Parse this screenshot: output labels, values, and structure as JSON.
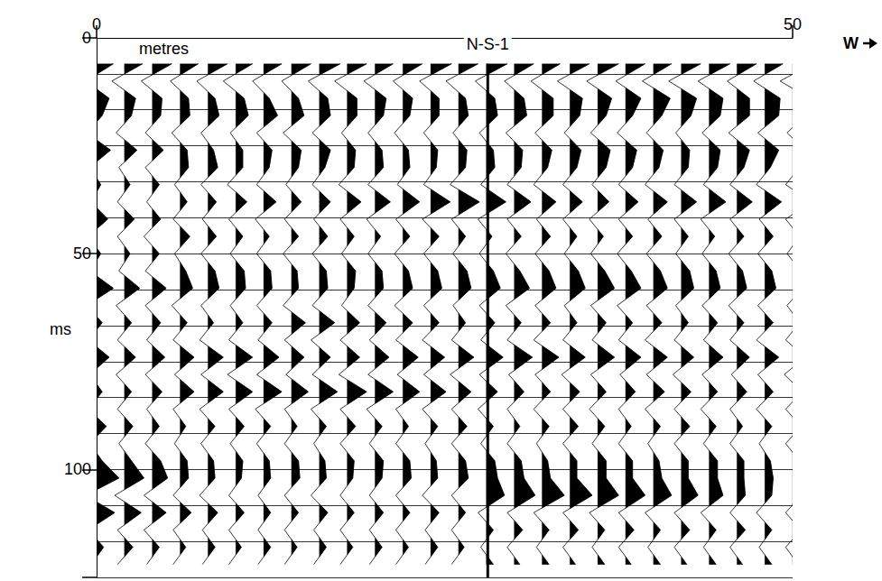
{
  "chart_data": {
    "type": "wiggle",
    "x_label": "metres",
    "y_label": "ms",
    "xlim": [
      0,
      50
    ],
    "xticks": [
      0,
      50
    ],
    "ylim": [
      0,
      125
    ],
    "yticks": [
      0,
      50,
      100
    ],
    "grid": true,
    "color": "#000000",
    "annotations": [
      {
        "text": "N-S-1",
        "x": 28.1
      },
      {
        "text": "W"
      }
    ],
    "traces": {
      "x": [
        0,
        2,
        4,
        6,
        8,
        10,
        12,
        14,
        16,
        18,
        20,
        22,
        24,
        26,
        28,
        30,
        32,
        34,
        36,
        38,
        40,
        42,
        44,
        46,
        48,
        50
      ],
      "t": [
        6,
        10,
        14,
        18,
        22,
        26,
        30,
        34,
        38,
        42,
        46,
        50,
        54,
        58,
        62,
        66,
        70,
        74,
        78,
        82,
        86,
        90,
        94,
        98,
        102,
        106,
        110,
        114,
        118,
        122
      ],
      "amplitudes": [
        [
          1.2,
          -0.8,
          0.9,
          0.4,
          -0.7,
          1.0,
          -0.5,
          0.3,
          -0.4,
          0.8,
          -0.6,
          0.3,
          -0.5,
          1.2,
          -0.7,
          0.4,
          -0.6,
          0.9,
          -0.5,
          0.4,
          -0.6,
          0.7,
          -0.5,
          0.4,
          1.6,
          -0.8,
          1.3,
          -0.6,
          0.5,
          -0.4
        ],
        [
          1.3,
          -0.9,
          0.8,
          0.5,
          -0.6,
          0.9,
          -0.4,
          0.4,
          -0.5,
          0.7,
          -0.5,
          0.4,
          -0.4,
          1.1,
          -0.6,
          0.5,
          -0.5,
          0.8,
          -0.6,
          0.5,
          -0.5,
          0.6,
          -0.4,
          0.5,
          1.4,
          -0.7,
          1.2,
          -0.5,
          0.6,
          -0.5
        ],
        [
          1.4,
          -0.8,
          0.7,
          0.6,
          -0.5,
          0.8,
          -0.5,
          0.5,
          -0.4,
          0.6,
          -0.6,
          0.5,
          -0.5,
          1.0,
          -0.5,
          0.6,
          -0.4,
          0.9,
          -0.5,
          0.7,
          -0.4,
          0.5,
          -0.5,
          0.6,
          1.1,
          -0.6,
          1.0,
          -0.6,
          0.5,
          -0.4
        ],
        [
          1.3,
          -0.7,
          0.6,
          0.7,
          -0.6,
          0.5,
          0.6,
          -0.4,
          0.5,
          -0.5,
          0.7,
          -0.4,
          0.4,
          0.9,
          -0.6,
          0.5,
          -0.5,
          1.0,
          -0.4,
          1.0,
          -0.5,
          0.4,
          -0.4,
          0.5,
          0.6,
          -0.5,
          0.8,
          -0.5,
          0.4,
          -0.5
        ],
        [
          1.4,
          -0.8,
          0.5,
          0.8,
          -0.5,
          0.4,
          0.7,
          -0.5,
          0.6,
          -0.4,
          0.6,
          -0.5,
          0.5,
          0.8,
          -0.5,
          0.4,
          -0.6,
          1.1,
          -0.5,
          1.1,
          -0.6,
          0.5,
          -0.5,
          0.4,
          0.5,
          -0.6,
          0.7,
          -0.4,
          0.5,
          -0.4
        ],
        [
          1.2,
          -0.9,
          0.6,
          0.9,
          -0.4,
          0.5,
          0.5,
          -0.6,
          0.8,
          -0.5,
          0.5,
          -0.4,
          0.6,
          0.7,
          -0.4,
          0.5,
          -0.5,
          1.2,
          -0.6,
          1.2,
          -0.5,
          0.6,
          -0.4,
          0.5,
          0.4,
          -0.5,
          0.6,
          -0.5,
          0.4,
          -0.5
        ],
        [
          1.3,
          -0.8,
          0.4,
          1.0,
          -0.5,
          0.6,
          0.4,
          -0.5,
          0.9,
          -0.6,
          0.4,
          -0.5,
          0.5,
          0.6,
          -0.5,
          0.6,
          -0.4,
          1.1,
          -0.5,
          1.3,
          -0.6,
          0.5,
          -0.5,
          0.4,
          0.5,
          -0.4,
          0.5,
          -0.4,
          0.5,
          -0.4
        ],
        [
          1.4,
          -0.7,
          0.5,
          0.9,
          -0.6,
          0.7,
          0.5,
          -0.4,
          0.7,
          -0.5,
          0.5,
          -0.6,
          0.4,
          0.5,
          -0.6,
          1.0,
          -0.5,
          0.9,
          -0.4,
          1.2,
          -0.5,
          0.4,
          -0.5,
          0.5,
          0.6,
          -0.5,
          0.5,
          -0.5,
          0.4,
          -0.5
        ],
        [
          1.5,
          -0.8,
          0.6,
          0.8,
          -0.5,
          0.8,
          0.4,
          -0.5,
          0.8,
          -0.4,
          0.6,
          -0.5,
          0.5,
          0.6,
          -0.5,
          1.1,
          -0.6,
          0.8,
          -0.5,
          1.3,
          -0.6,
          0.5,
          -0.4,
          0.4,
          0.5,
          -0.6,
          0.6,
          -0.4,
          0.5,
          -0.4
        ],
        [
          1.4,
          -0.9,
          0.7,
          0.7,
          -0.4,
          0.6,
          0.5,
          -0.6,
          1.0,
          -0.5,
          0.5,
          -0.4,
          0.6,
          0.5,
          -0.4,
          0.9,
          -0.5,
          0.9,
          -0.6,
          1.4,
          -0.5,
          0.6,
          -0.5,
          0.5,
          0.4,
          -0.5,
          0.5,
          -0.5,
          0.4,
          -0.5
        ],
        [
          1.3,
          -0.8,
          0.8,
          0.6,
          -0.5,
          0.5,
          0.6,
          -0.5,
          1.1,
          -0.6,
          0.4,
          -0.5,
          0.5,
          0.6,
          -0.5,
          0.8,
          -0.4,
          1.0,
          -0.5,
          1.3,
          -0.6,
          0.5,
          -0.4,
          0.6,
          0.5,
          -0.4,
          0.6,
          -0.4,
          0.5,
          -0.4
        ],
        [
          1.4,
          -0.7,
          0.7,
          0.5,
          -0.6,
          0.4,
          0.5,
          -0.4,
          1.2,
          -0.5,
          0.5,
          -0.6,
          0.4,
          0.7,
          -0.6,
          0.7,
          -0.5,
          1.1,
          -0.4,
          1.2,
          -0.5,
          0.4,
          -0.5,
          0.5,
          0.6,
          -0.5,
          0.5,
          -0.5,
          0.4,
          -0.5
        ],
        [
          1.5,
          -0.8,
          0.6,
          0.6,
          -0.5,
          0.5,
          0.4,
          -0.5,
          1.4,
          -0.6,
          0.6,
          -0.5,
          0.5,
          0.8,
          -0.5,
          0.6,
          -0.6,
          1.0,
          -0.5,
          1.1,
          -0.6,
          0.5,
          -0.4,
          0.4,
          0.5,
          -0.6,
          0.6,
          -0.4,
          0.5,
          -0.4
        ],
        [
          1.4,
          -0.9,
          0.5,
          0.7,
          -0.4,
          0.6,
          0.5,
          -0.6,
          1.5,
          -0.5,
          0.5,
          -0.4,
          0.6,
          0.9,
          -0.4,
          0.5,
          -0.5,
          1.1,
          -0.6,
          0.9,
          -0.5,
          0.6,
          -0.5,
          0.5,
          0.7,
          -0.5,
          0.5,
          -0.5,
          0.4,
          -0.5
        ],
        [
          1.5,
          -0.8,
          0.6,
          0.8,
          -0.5,
          0.5,
          0.6,
          -0.4,
          1.4,
          -0.6,
          0.4,
          -0.5,
          0.5,
          1.0,
          -0.5,
          0.6,
          -0.4,
          1.2,
          -0.5,
          0.8,
          -0.6,
          0.5,
          -0.4,
          0.6,
          0.8,
          1.3,
          -0.6,
          0.5,
          -0.4,
          0.5
        ],
        [
          1.4,
          -0.7,
          0.7,
          0.9,
          -0.6,
          0.6,
          0.5,
          -0.5,
          1.2,
          -0.5,
          0.5,
          -0.6,
          0.4,
          1.1,
          -0.6,
          0.5,
          -0.5,
          1.3,
          -0.4,
          0.7,
          -0.5,
          0.4,
          -0.5,
          0.5,
          0.7,
          1.5,
          -0.5,
          0.6,
          -0.5,
          0.4
        ],
        [
          1.3,
          -0.8,
          0.8,
          0.8,
          -0.5,
          0.7,
          0.4,
          -0.6,
          1.0,
          -0.4,
          0.6,
          -0.5,
          0.5,
          1.0,
          -0.5,
          0.6,
          -0.6,
          1.2,
          -0.5,
          0.6,
          -0.6,
          0.5,
          -0.4,
          0.4,
          0.6,
          1.6,
          -0.6,
          0.5,
          -0.4,
          0.5
        ],
        [
          1.4,
          -0.9,
          0.9,
          0.7,
          -0.4,
          0.8,
          0.5,
          -0.5,
          0.9,
          -0.5,
          0.5,
          -0.4,
          0.6,
          1.1,
          -0.4,
          0.5,
          -0.5,
          1.1,
          -0.6,
          0.7,
          -0.5,
          0.6,
          -0.5,
          0.5,
          0.5,
          1.6,
          -0.5,
          0.6,
          -0.5,
          0.4
        ],
        [
          1.5,
          -0.8,
          1.0,
          0.6,
          -0.5,
          0.9,
          0.6,
          -0.4,
          0.8,
          -0.6,
          0.4,
          -0.5,
          0.5,
          1.2,
          -0.5,
          0.6,
          -0.4,
          1.2,
          -0.5,
          0.6,
          -0.6,
          0.5,
          -0.4,
          0.6,
          0.6,
          1.5,
          -0.6,
          0.5,
          -0.4,
          0.5
        ],
        [
          1.4,
          -0.7,
          1.1,
          0.5,
          -0.6,
          0.8,
          0.5,
          -0.5,
          0.9,
          -0.5,
          0.5,
          -0.6,
          0.4,
          1.1,
          -0.6,
          0.5,
          -0.5,
          1.1,
          -0.4,
          0.7,
          -0.5,
          0.4,
          -0.5,
          0.5,
          0.5,
          1.4,
          -0.5,
          0.6,
          -0.5,
          0.4
        ],
        [
          1.3,
          -0.8,
          1.2,
          0.6,
          -0.5,
          0.7,
          0.4,
          -0.6,
          1.0,
          -0.4,
          0.6,
          -0.5,
          0.5,
          1.0,
          -0.5,
          0.6,
          -0.6,
          1.0,
          -0.5,
          0.8,
          -0.6,
          0.5,
          -0.4,
          0.4,
          0.6,
          1.3,
          -0.6,
          0.5,
          -0.4,
          0.5
        ],
        [
          1.4,
          -0.9,
          1.1,
          0.7,
          -0.4,
          0.6,
          0.5,
          -0.5,
          1.1,
          -0.5,
          0.5,
          -0.4,
          0.6,
          0.9,
          -0.4,
          0.5,
          -0.5,
          0.9,
          -0.6,
          0.7,
          -0.5,
          0.6,
          -0.5,
          0.5,
          0.5,
          1.2,
          -0.5,
          0.6,
          -0.5,
          0.4
        ],
        [
          1.5,
          -0.8,
          1.0,
          0.8,
          -0.5,
          0.8,
          0.6,
          -0.4,
          1.2,
          -0.6,
          0.4,
          -0.5,
          0.5,
          0.8,
          -0.5,
          0.6,
          -0.4,
          1.0,
          -0.5,
          0.6,
          -0.6,
          0.5,
          -0.4,
          0.6,
          0.6,
          1.0,
          -0.6,
          0.5,
          -0.4,
          0.5
        ],
        [
          1.4,
          -0.7,
          0.9,
          0.9,
          -0.6,
          0.9,
          0.5,
          -0.5,
          1.1,
          -0.5,
          0.5,
          -0.6,
          0.4,
          0.7,
          -0.6,
          0.5,
          -0.5,
          0.9,
          -0.4,
          0.7,
          -0.5,
          0.4,
          -0.5,
          0.5,
          0.5,
          0.6,
          -0.5,
          0.6,
          -0.5,
          0.4
        ],
        [
          1.3,
          -0.8,
          1.1,
          1.0,
          -0.5,
          1.0,
          0.4,
          -0.6,
          1.2,
          -0.4,
          0.6,
          -0.5,
          0.5,
          0.8,
          -0.5,
          0.6,
          -0.6,
          1.0,
          -0.5,
          0.6,
          -0.6,
          0.5,
          -0.4,
          0.4,
          0.6,
          0.5,
          -0.6,
          0.5,
          -0.4,
          0.5
        ],
        [
          1.4,
          -0.9,
          1.2,
          0.9,
          -0.4,
          0.9,
          0.5,
          -0.5,
          1.3,
          -0.5,
          0.5,
          -0.4,
          0.6,
          0.7,
          -0.4,
          0.5,
          -0.5,
          0.9,
          -0.6,
          0.7,
          -0.5,
          0.6,
          -0.5,
          0.5,
          0.5,
          0.6,
          -0.5,
          0.6,
          -0.5,
          0.4
        ]
      ]
    }
  }
}
